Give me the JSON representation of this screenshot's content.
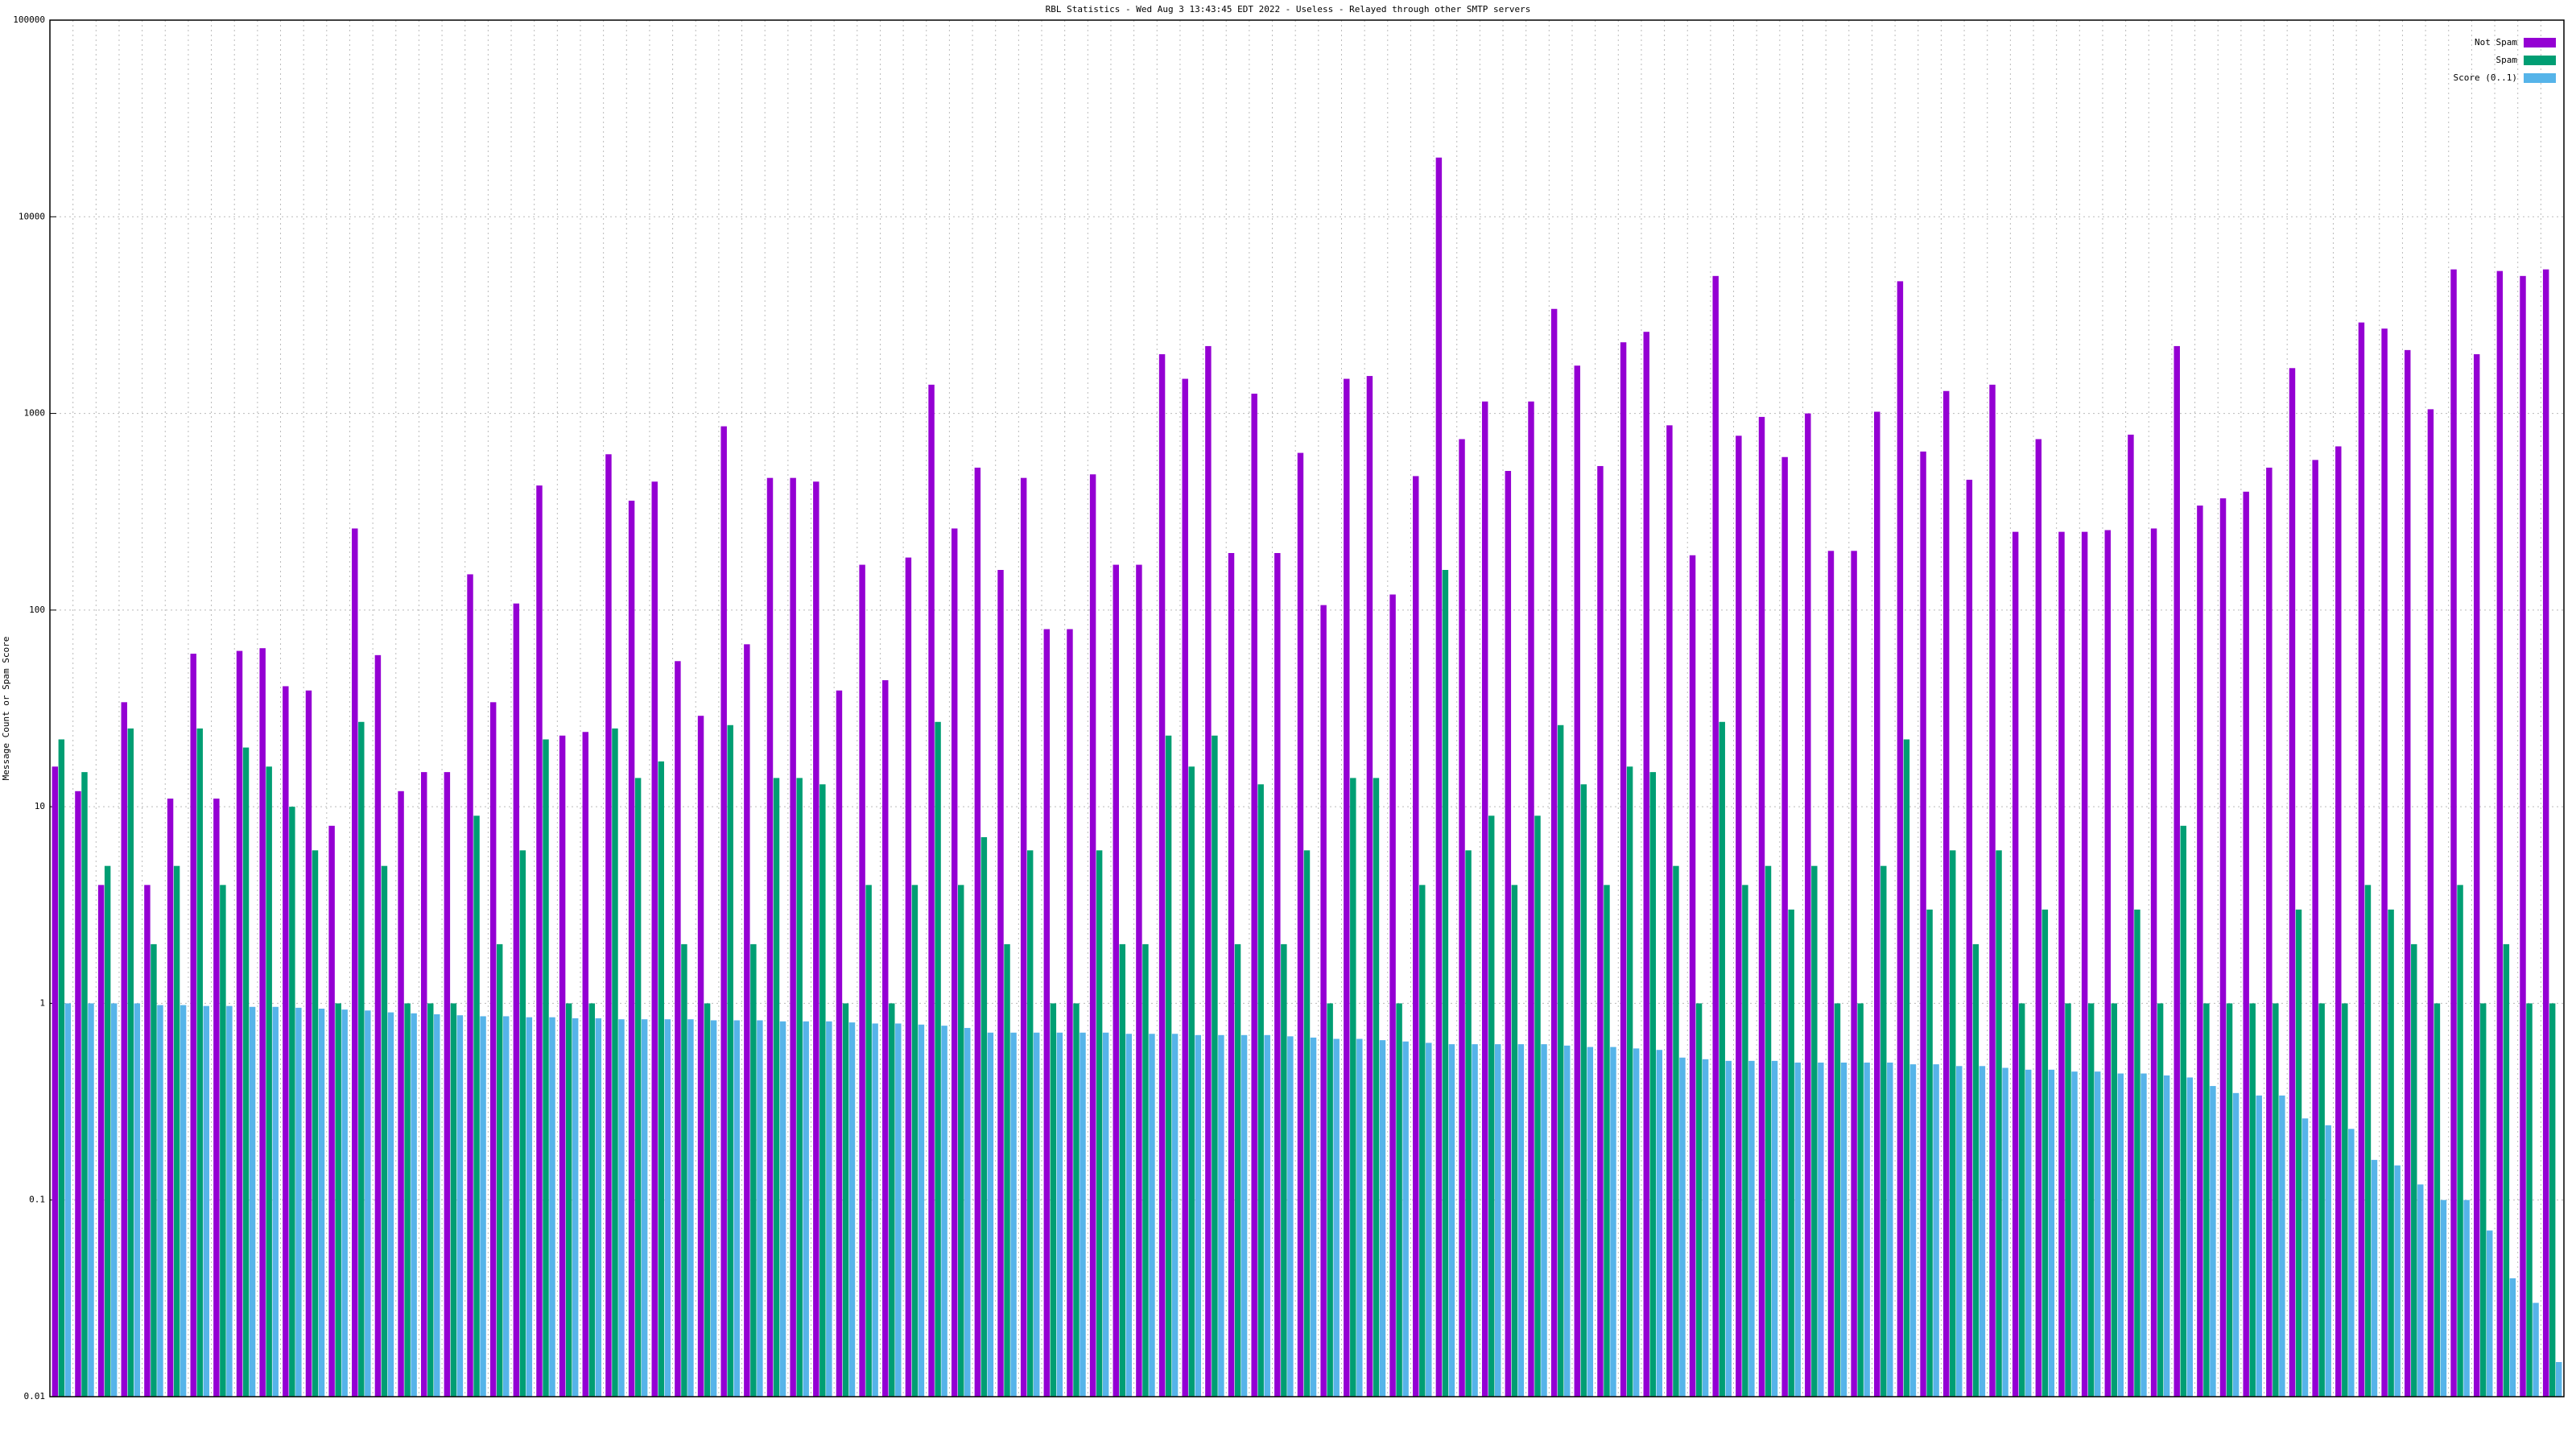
{
  "chart_data": {
    "type": "bar",
    "title": "RBL Statistics - Wed Aug  3 13:43:45 EDT 2022 - Useless - Relayed through other SMTP servers",
    "y_label": "Message Count or Spam Score",
    "log_scale": true,
    "grid": true,
    "legend_position": "upper right",
    "ylim": [
      0.01,
      100000
    ],
    "yticks": [
      0.01,
      0.1,
      1,
      10,
      100,
      1000,
      10000,
      100000
    ],
    "categories": [
      null,
      null,
      null,
      null,
      null,
      null,
      null,
      null,
      null,
      null,
      null,
      null,
      null,
      null,
      null,
      null,
      null,
      null,
      null,
      null,
      null,
      null,
      null,
      null,
      null,
      null,
      null,
      null,
      null,
      null,
      null,
      null,
      null,
      null,
      null,
      null,
      null,
      null,
      null,
      null,
      null,
      null,
      null,
      null,
      null,
      null,
      null,
      null,
      null,
      null,
      null,
      null,
      null,
      null,
      null,
      null,
      null,
      null,
      null,
      null,
      null,
      null,
      null,
      null,
      null,
      null,
      null,
      null,
      null,
      null,
      null,
      null,
      null,
      null,
      null,
      null,
      null,
      null,
      null,
      null,
      null,
      null,
      null,
      null,
      null,
      null,
      null,
      null,
      null,
      null,
      null,
      null,
      null,
      null,
      null,
      null,
      null,
      null,
      null,
      null,
      null,
      null,
      null,
      null,
      null,
      null,
      null,
      null,
      null
    ],
    "series": [
      {
        "name": "Not Spam",
        "color": "#9400d3",
        "values": [
          16,
          12,
          4,
          34,
          4,
          11,
          60,
          11,
          62,
          64,
          41,
          39,
          8,
          260,
          59,
          12,
          15,
          15,
          152,
          34,
          108,
          430,
          23,
          24,
          620,
          360,
          450,
          55,
          29,
          860,
          67,
          470,
          470,
          450,
          39,
          170,
          44,
          185,
          1400,
          260,
          530,
          160,
          470,
          80,
          80,
          490,
          170,
          170,
          2000,
          1500,
          2200,
          195,
          1260,
          195,
          630,
          106,
          1500,
          1550,
          120,
          480,
          20000,
          740,
          1150,
          510,
          1150,
          3400,
          1750,
          540,
          2300,
          2600,
          870,
          190,
          5000,
          770,
          960,
          600,
          1000,
          200,
          200,
          1020,
          4700,
          640,
          1300,
          460,
          1400,
          250,
          740,
          250,
          250,
          255,
          780,
          260,
          2200,
          340,
          370,
          400,
          530,
          1700,
          580,
          680,
          2900,
          2700,
          2100,
          1050,
          5400,
          2000,
          5300,
          5000,
          5400
        ]
      },
      {
        "name": "Spam",
        "color": "#009e73",
        "values": [
          22,
          15,
          5,
          25,
          2,
          5,
          25,
          4,
          20,
          16,
          10,
          6,
          1,
          27,
          5,
          1,
          1,
          1,
          9,
          2,
          6,
          22,
          1,
          1,
          25,
          14,
          17,
          2,
          1,
          26,
          2,
          14,
          14,
          13,
          1,
          4,
          1,
          4,
          27,
          4,
          7,
          2,
          6,
          1,
          1,
          6,
          2,
          2,
          23,
          16,
          23,
          2,
          13,
          2,
          6,
          1,
          14,
          14,
          1,
          4,
          160,
          6,
          9,
          4,
          9,
          26,
          13,
          4,
          16,
          15,
          5,
          1,
          27,
          4,
          5,
          3,
          5,
          1,
          1,
          5,
          22,
          3,
          6,
          2,
          6,
          1,
          3,
          1,
          1,
          1,
          3,
          1,
          8,
          1,
          1,
          1,
          1,
          3,
          1,
          1,
          4,
          3,
          2,
          1,
          4,
          1,
          2,
          1,
          1
        ]
      },
      {
        "name": "Score (0..1)",
        "color": "#56b4e9",
        "values": [
          1,
          1,
          1,
          1,
          0.98,
          0.98,
          0.97,
          0.97,
          0.96,
          0.96,
          0.95,
          0.94,
          0.93,
          0.92,
          0.9,
          0.89,
          0.88,
          0.87,
          0.86,
          0.86,
          0.85,
          0.85,
          0.84,
          0.84,
          0.83,
          0.83,
          0.83,
          0.83,
          0.82,
          0.82,
          0.82,
          0.81,
          0.81,
          0.81,
          0.8,
          0.79,
          0.79,
          0.78,
          0.77,
          0.75,
          0.71,
          0.71,
          0.71,
          0.71,
          0.71,
          0.71,
          0.7,
          0.7,
          0.7,
          0.69,
          0.69,
          0.69,
          0.69,
          0.68,
          0.67,
          0.66,
          0.66,
          0.65,
          0.64,
          0.63,
          0.62,
          0.62,
          0.62,
          0.62,
          0.62,
          0.61,
          0.6,
          0.6,
          0.59,
          0.58,
          0.53,
          0.52,
          0.51,
          0.51,
          0.51,
          0.5,
          0.5,
          0.5,
          0.5,
          0.5,
          0.49,
          0.49,
          0.48,
          0.48,
          0.47,
          0.46,
          0.46,
          0.45,
          0.45,
          0.44,
          0.44,
          0.43,
          0.42,
          0.38,
          0.35,
          0.34,
          0.34,
          0.26,
          0.24,
          0.23,
          0.16,
          0.15,
          0.12,
          0.1,
          0.1,
          0.07,
          0.04,
          0.03,
          0.015
        ]
      }
    ]
  }
}
